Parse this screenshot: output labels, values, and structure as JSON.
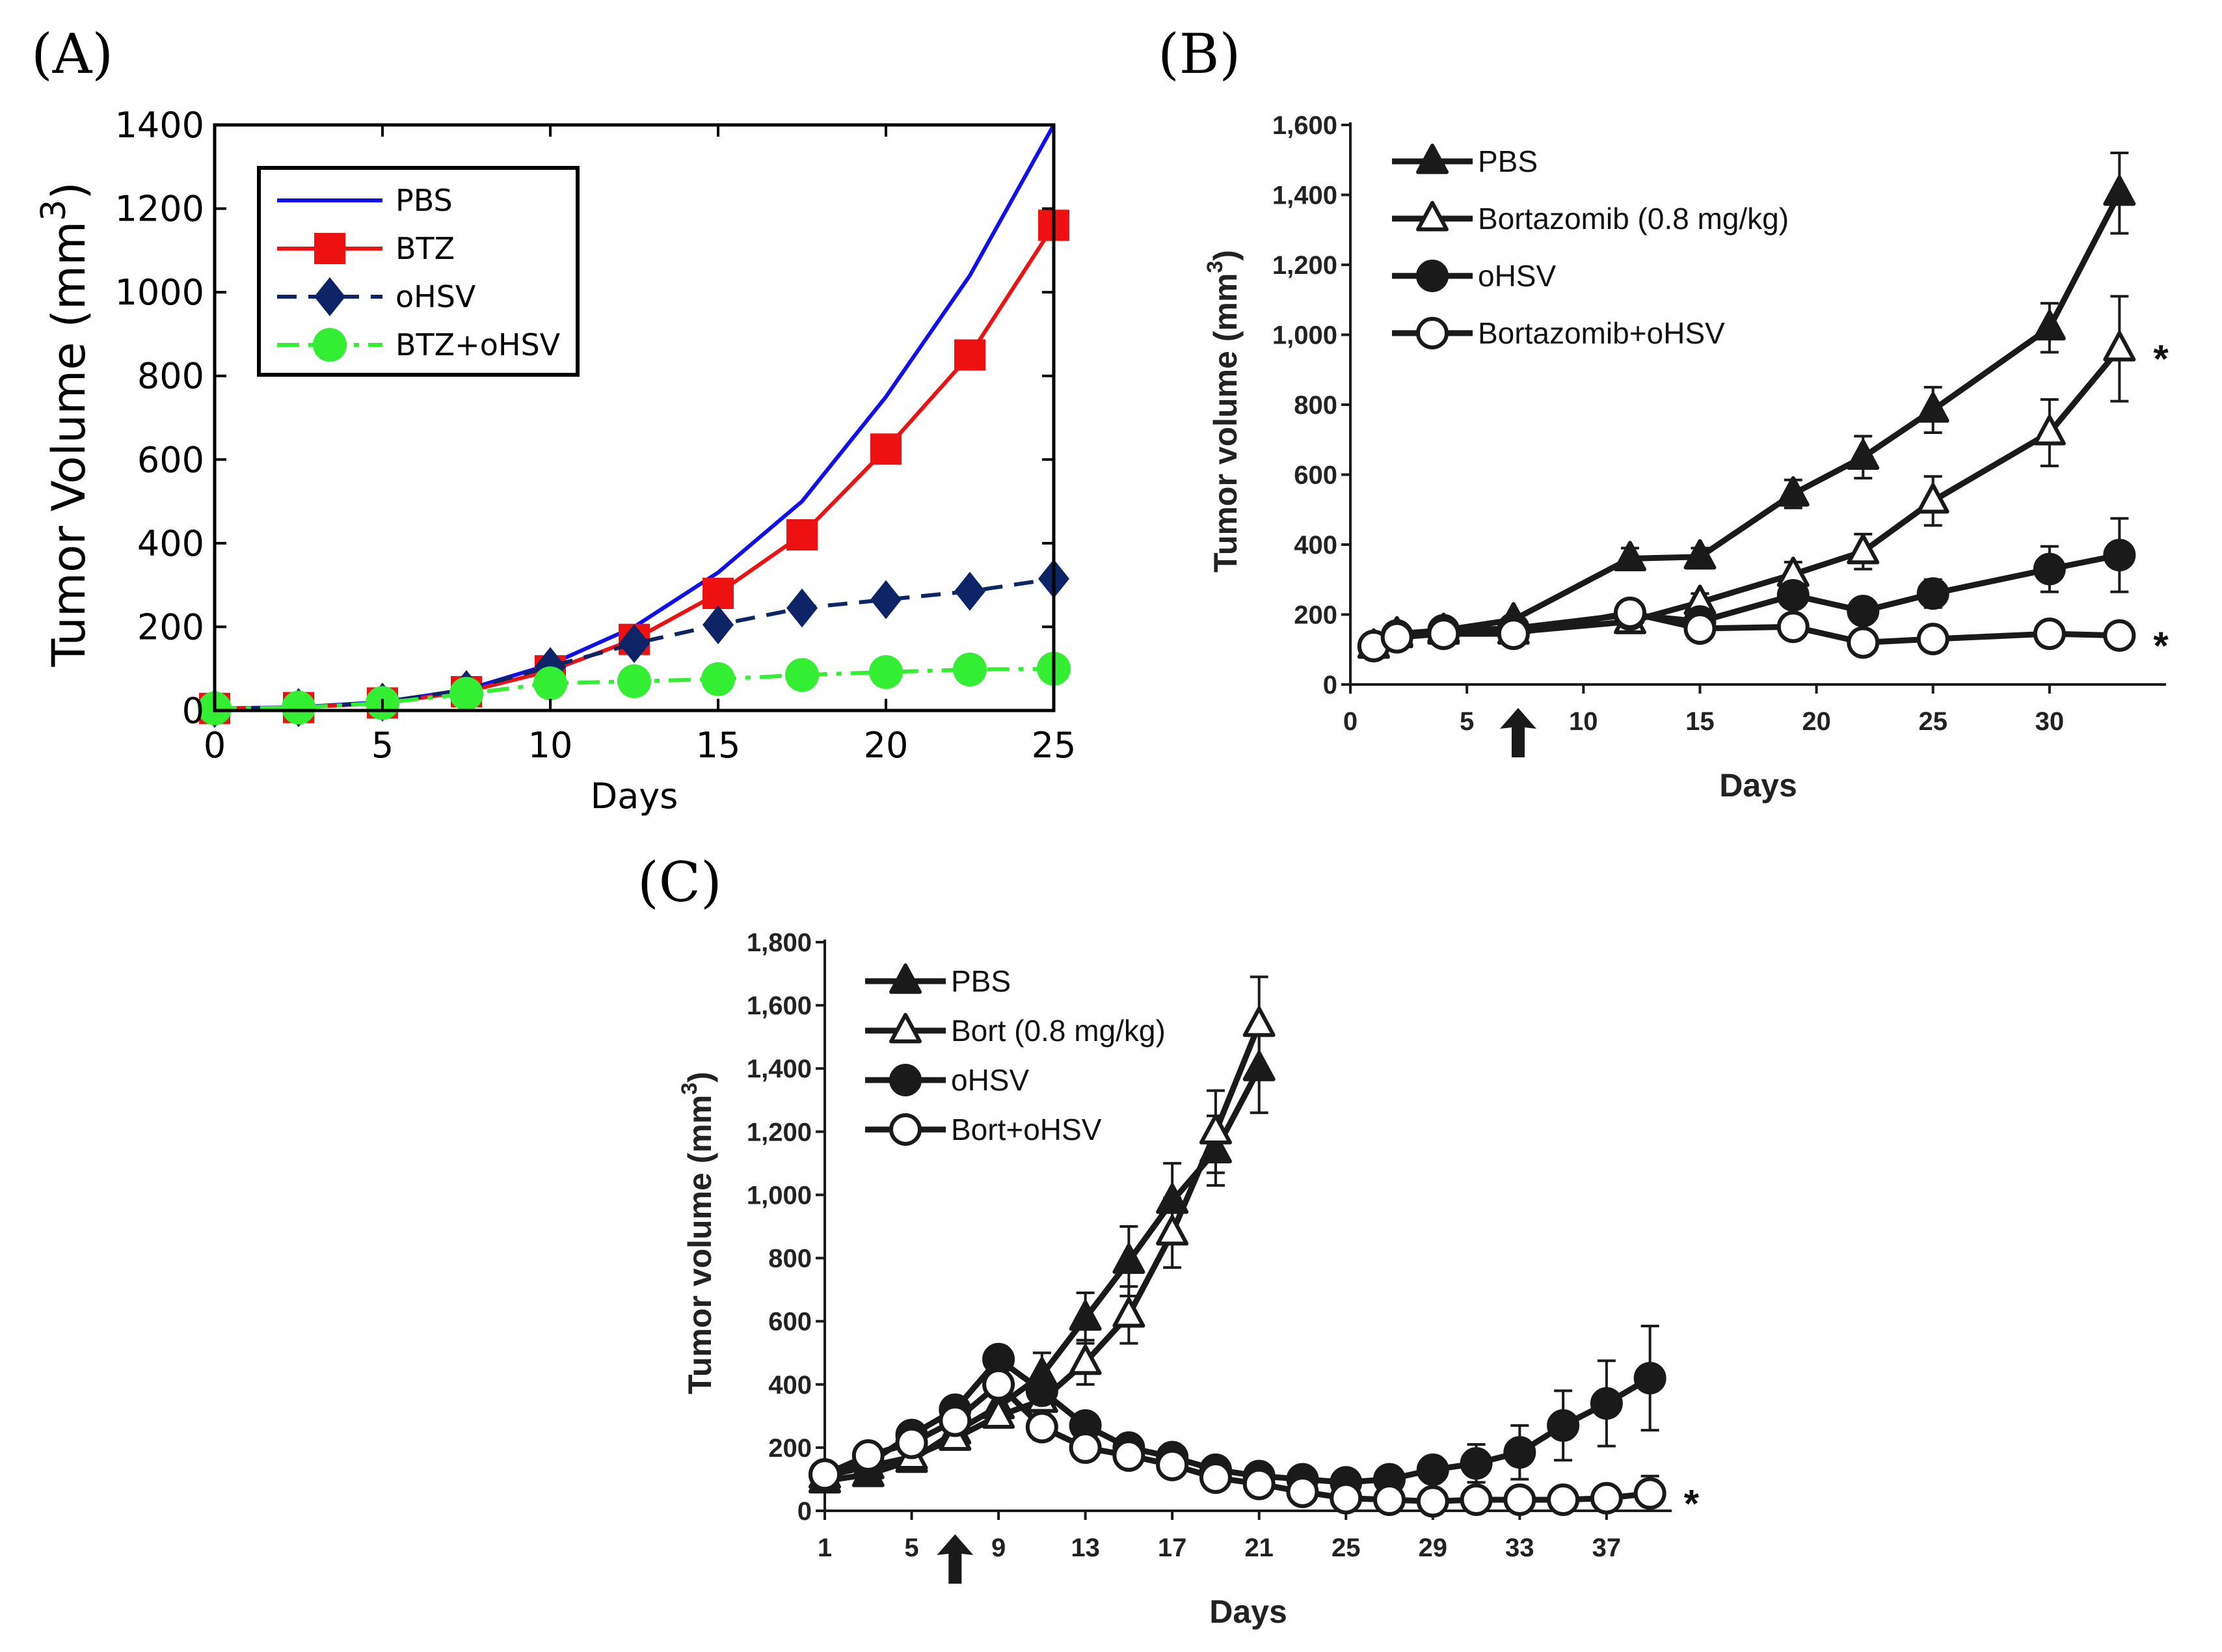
{
  "panel_labels": {
    "A": "(A)",
    "B": "(B)",
    "C": "(C)"
  },
  "chart_data": [
    {
      "id": "A",
      "type": "line",
      "xlabel": "Days",
      "ylabel": "Tumor Volume (mm",
      "ylabel_sup": "3",
      "ylabel_close": ")",
      "xlim": [
        0,
        25
      ],
      "ylim": [
        0,
        1400
      ],
      "xticks": [
        0,
        5,
        10,
        15,
        20,
        25
      ],
      "xtick_labels": [
        "0",
        "5",
        "10",
        "15",
        "20",
        "25"
      ],
      "yticks": [
        0,
        200,
        400,
        600,
        800,
        1000,
        1200,
        1400
      ],
      "ytick_labels": [
        "0",
        "200",
        "400",
        "600",
        "800",
        "1000",
        "1200",
        "1400"
      ],
      "legend_position": "top-left",
      "x": [
        0,
        2.5,
        5,
        7.5,
        10,
        12.5,
        15,
        17.5,
        20,
        22.5,
        25
      ],
      "series": [
        {
          "name": "PBS",
          "color": "#1010ee",
          "marker": "none",
          "dash": "solid",
          "values": [
            5,
            8,
            20,
            50,
            110,
            200,
            330,
            500,
            750,
            1040,
            1400
          ]
        },
        {
          "name": "BTZ",
          "color": "#ee1111",
          "marker": "square",
          "dash": "solid",
          "values": [
            5,
            7,
            18,
            45,
            95,
            170,
            280,
            420,
            625,
            850,
            1160
          ]
        },
        {
          "name": "oHSV",
          "color": "#0d2566",
          "marker": "diamond",
          "dash": "dashed",
          "values": [
            5,
            7,
            20,
            50,
            105,
            160,
            205,
            245,
            265,
            285,
            315
          ]
        },
        {
          "name": "BTZ+oHSV",
          "color": "#33ee33",
          "marker": "circle",
          "dash": "dashdot",
          "values": [
            5,
            7,
            18,
            40,
            65,
            70,
            75,
            85,
            92,
            98,
            100
          ]
        }
      ]
    },
    {
      "id": "B",
      "type": "line",
      "xlabel": "Days",
      "ylabel": "Tumor volume (mm",
      "ylabel_sup": "3",
      "ylabel_close": ")",
      "xlim": [
        0,
        35
      ],
      "ylim": [
        0,
        1600
      ],
      "xticks": [
        0,
        5,
        10,
        15,
        20,
        25,
        30
      ],
      "xtick_labels": [
        "0",
        "5",
        "10",
        "15",
        "20",
        "25",
        "30"
      ],
      "yticks": [
        0,
        200,
        400,
        600,
        800,
        1000,
        1200,
        1400,
        1600
      ],
      "ytick_labels": [
        "0",
        "200",
        "400",
        "600",
        "800",
        "1,000",
        "1,200",
        "1,400",
        "1,600"
      ],
      "arrow_at": 7.2,
      "legend_position": "top-left",
      "annotations": [
        {
          "text": "*",
          "series": "Bortazomib (0.8 mg/kg)"
        },
        {
          "text": "*",
          "series": "Bortazomib+oHSV"
        }
      ],
      "series": [
        {
          "name": "PBS",
          "marker": "triangle-filled",
          "x": [
            1,
            2,
            4,
            7,
            12,
            15,
            19,
            22,
            25,
            30,
            33
          ],
          "values": [
            110,
            145,
            155,
            185,
            360,
            365,
            545,
            650,
            785,
            1020,
            1405
          ],
          "err": [
            0,
            0,
            0,
            0,
            30,
            25,
            40,
            60,
            65,
            70,
            115
          ]
        },
        {
          "name": "Bortazomib (0.8 mg/kg)",
          "marker": "triangle-open",
          "x": [
            1,
            2,
            4,
            7,
            12,
            15,
            19,
            22,
            25,
            30,
            33
          ],
          "values": [
            110,
            140,
            150,
            150,
            180,
            235,
            315,
            380,
            525,
            720,
            960
          ],
          "err": [
            0,
            0,
            0,
            0,
            20,
            25,
            35,
            50,
            70,
            95,
            150
          ]
        },
        {
          "name": "oHSV",
          "marker": "circle-filled",
          "x": [
            1,
            2,
            4,
            7,
            12,
            15,
            19,
            22,
            25,
            30,
            33
          ],
          "values": [
            110,
            140,
            155,
            160,
            200,
            180,
            255,
            210,
            260,
            330,
            370
          ],
          "err": [
            0,
            0,
            0,
            0,
            20,
            20,
            25,
            25,
            40,
            65,
            105
          ]
        },
        {
          "name": "Bortazomib+oHSV",
          "marker": "circle-open",
          "x": [
            1,
            2,
            4,
            7,
            12,
            15,
            19,
            22,
            25,
            30,
            33
          ],
          "values": [
            110,
            135,
            145,
            145,
            205,
            160,
            165,
            120,
            130,
            145,
            140
          ],
          "err": [
            0,
            0,
            0,
            0,
            20,
            15,
            20,
            10,
            15,
            20,
            20
          ]
        }
      ]
    },
    {
      "id": "C",
      "type": "line",
      "xlabel": "Days",
      "ylabel": "Tumor volume (mm",
      "ylabel_sup": "3",
      "ylabel_close": ")",
      "xlim": [
        1,
        40
      ],
      "ylim": [
        0,
        1800
      ],
      "xticks": [
        1,
        5,
        9,
        13,
        17,
        21,
        25,
        29,
        33,
        37
      ],
      "xtick_labels": [
        "1",
        "5",
        "9",
        "13",
        "17",
        "21",
        "25",
        "29",
        "33",
        "37"
      ],
      "yticks": [
        0,
        200,
        400,
        600,
        800,
        1000,
        1200,
        1400,
        1600,
        1800
      ],
      "ytick_labels": [
        "0",
        "200",
        "400",
        "600",
        "800",
        "1,000",
        "1,200",
        "1,400",
        "1,600",
        "1,800"
      ],
      "arrow_at": 7.0,
      "legend_position": "top-left",
      "annotations": [
        {
          "text": "*",
          "series": "Bort+oHSV"
        }
      ],
      "series": [
        {
          "name": "PBS",
          "marker": "triangle-filled",
          "x": [
            1,
            3,
            5,
            7,
            9,
            11,
            13,
            15,
            17,
            19,
            21
          ],
          "values": [
            95,
            115,
            160,
            250,
            330,
            430,
            610,
            790,
            980,
            1140,
            1400
          ],
          "err": [
            0,
            0,
            0,
            30,
            40,
            70,
            80,
            110,
            120,
            110,
            140
          ]
        },
        {
          "name": "Bort (0.8 mg/kg)",
          "marker": "triangle-open",
          "x": [
            1,
            3,
            5,
            7,
            9,
            11,
            13,
            15,
            17,
            19,
            21
          ],
          "values": [
            110,
            140,
            170,
            230,
            300,
            350,
            470,
            620,
            880,
            1200,
            1540
          ],
          "err": [
            0,
            0,
            0,
            25,
            30,
            60,
            70,
            90,
            110,
            130,
            150
          ]
        },
        {
          "name": "oHSV",
          "marker": "circle-filled",
          "x": [
            1,
            3,
            5,
            7,
            9,
            11,
            13,
            15,
            17,
            19,
            21,
            23,
            25,
            27,
            29,
            31,
            33,
            35,
            37,
            39
          ],
          "values": [
            115,
            150,
            240,
            320,
            480,
            380,
            270,
            200,
            170,
            130,
            110,
            100,
            90,
            100,
            130,
            150,
            185,
            270,
            340,
            420
          ],
          "err": [
            0,
            0,
            0,
            25,
            40,
            40,
            30,
            25,
            20,
            15,
            15,
            15,
            15,
            20,
            40,
            60,
            85,
            110,
            135,
            165
          ]
        },
        {
          "name": "Bort+oHSV",
          "marker": "circle-open",
          "x": [
            1,
            3,
            5,
            7,
            9,
            11,
            13,
            15,
            17,
            19,
            21,
            23,
            25,
            27,
            29,
            31,
            33,
            35,
            37,
            39
          ],
          "values": [
            115,
            175,
            215,
            285,
            400,
            265,
            200,
            175,
            145,
            105,
            85,
            60,
            40,
            35,
            30,
            35,
            35,
            35,
            40,
            55
          ],
          "err": [
            0,
            0,
            0,
            25,
            40,
            40,
            25,
            20,
            15,
            15,
            15,
            15,
            10,
            10,
            10,
            15,
            15,
            20,
            30,
            55
          ]
        }
      ]
    }
  ]
}
